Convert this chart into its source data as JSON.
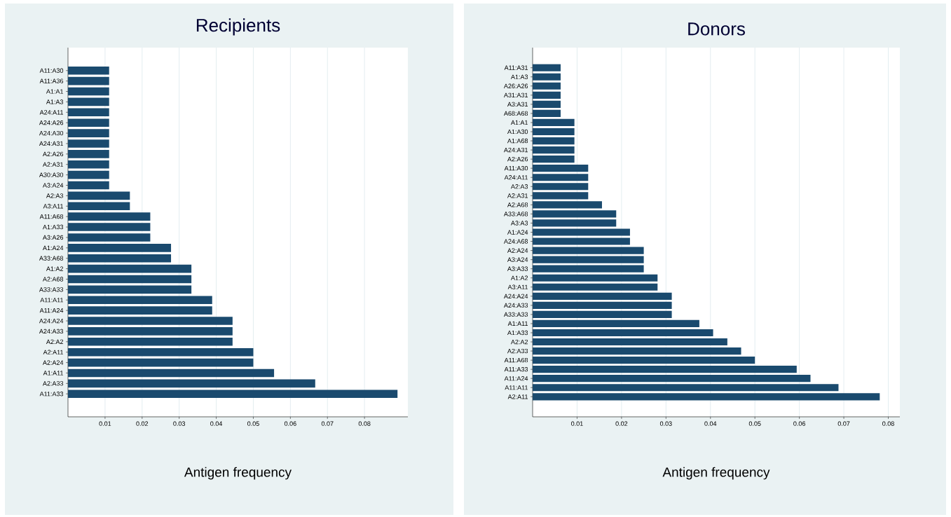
{
  "chart_data": [
    {
      "type": "bar",
      "orientation": "horizontal",
      "title": "Recipients",
      "xlabel": "Antigen frequency",
      "color": "#1a4a6e",
      "grid": "x",
      "xlim": [
        0,
        0.0917
      ],
      "xticks": [
        0.01,
        0.02,
        0.03,
        0.04,
        0.05,
        0.06,
        0.07,
        0.08
      ],
      "categories": [
        "A11:A30",
        "A11:A36",
        "A1:A1",
        "A1:A3",
        "A24:A11",
        "A24:A26",
        "A24:A30",
        "A24:A31",
        "A2:A26",
        "A2:A31",
        "A30:A30",
        "A3:A24",
        "A2:A3",
        "A3:A11",
        "A11:A68",
        "A1:A33",
        "A3:A26",
        "A1:A24",
        "A33:A68",
        "A1:A2",
        "A2:A68",
        "A33:A33",
        "A11:A11",
        "A11:A24",
        "A24:A24",
        "A24:A33",
        "A2:A2",
        "A2:A11",
        "A2:A24",
        "A1:A11",
        "A2:A33",
        "A11:A33"
      ],
      "values": [
        0.0111,
        0.0111,
        0.0111,
        0.0111,
        0.0111,
        0.0111,
        0.0111,
        0.0111,
        0.0111,
        0.0111,
        0.0111,
        0.0111,
        0.0167,
        0.0167,
        0.0222,
        0.0222,
        0.0222,
        0.0278,
        0.0278,
        0.0333,
        0.0333,
        0.0333,
        0.0389,
        0.0389,
        0.0444,
        0.0444,
        0.0444,
        0.05,
        0.05,
        0.0556,
        0.0667,
        0.0889
      ]
    },
    {
      "type": "bar",
      "orientation": "horizontal",
      "title": "Donors",
      "xlabel": "Antigen frequency",
      "color": "#1a4a6e",
      "grid": "x",
      "xlim": [
        0,
        0.0826
      ],
      "xticks": [
        0.01,
        0.02,
        0.03,
        0.04,
        0.05,
        0.06,
        0.07,
        0.08
      ],
      "categories": [
        "A11:A31",
        "A1:A3",
        "A26:A26",
        "A31:A31",
        "A3:A31",
        "A68:A68",
        "A1:A1",
        "A1:A30",
        "A1:A68",
        "A24:A31",
        "A2:A26",
        "A11:A30",
        "A24:A11",
        "A2:A3",
        "A2:A31",
        "A2:A68",
        "A33:A68",
        "A3:A3",
        "A1:A24",
        "A24:A68",
        "A2:A24",
        "A3:A24",
        "A3:A33",
        "A1:A2",
        "A3:A11",
        "A24:A24",
        "A24:A33",
        "A33:A33",
        "A1:A11",
        "A1:A33",
        "A2:A2",
        "A2:A33",
        "A11:A68",
        "A11:A33",
        "A11:A24",
        "A11:A11",
        "A2:A11"
      ],
      "values": [
        0.0063,
        0.0063,
        0.0063,
        0.0063,
        0.0063,
        0.0063,
        0.0094,
        0.0094,
        0.0094,
        0.0094,
        0.0094,
        0.0125,
        0.0125,
        0.0125,
        0.0125,
        0.0156,
        0.0188,
        0.0188,
        0.0219,
        0.0219,
        0.025,
        0.025,
        0.025,
        0.0281,
        0.0281,
        0.0313,
        0.0313,
        0.0313,
        0.0375,
        0.0406,
        0.0438,
        0.0469,
        0.05,
        0.0594,
        0.0625,
        0.0688,
        0.0781
      ]
    }
  ]
}
